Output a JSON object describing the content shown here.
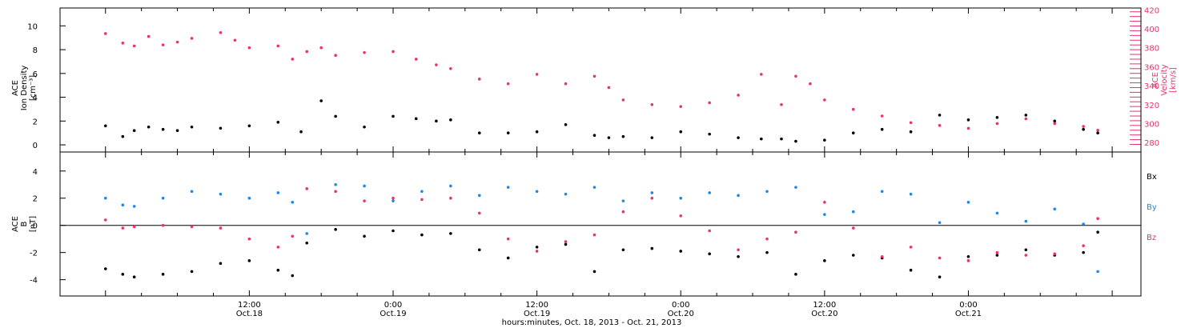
{
  "colors": {
    "black": "#000000",
    "pink": "#e8336e",
    "blue": "#1e88e5"
  },
  "chart_data": [
    {
      "type": "scatter",
      "panel": "top",
      "ylabel_left": [
        "ACE",
        "Ion Density",
        "[cm⁻³]"
      ],
      "ylabel_right": [
        "ACE",
        "Velocity",
        "[km/s]"
      ],
      "y_left_lim": [
        -0.6,
        11.5
      ],
      "y_left_ticks": [
        0,
        2,
        4,
        6,
        8,
        10
      ],
      "y_right_lim": [
        270,
        422
      ],
      "y_right_ticks": [
        280,
        300,
        320,
        340,
        360,
        380,
        400,
        420
      ],
      "series": [
        {
          "name": "Ion Density",
          "axis": "left",
          "color": "black",
          "x": [
            0.0,
            0.06,
            0.1,
            0.15,
            0.2,
            0.25,
            0.3,
            0.4,
            0.5,
            0.6,
            0.68,
            0.75,
            0.8,
            0.9,
            1.0,
            1.08,
            1.15,
            1.2,
            1.3,
            1.4,
            1.5,
            1.6,
            1.7,
            1.75,
            1.8,
            1.9,
            2.0,
            2.1,
            2.2,
            2.28,
            2.35,
            2.4,
            2.5,
            2.6,
            2.7,
            2.8,
            2.9,
            3.0,
            3.1,
            3.2,
            3.3,
            3.4,
            3.45
          ],
          "y": [
            1.6,
            0.7,
            1.2,
            1.5,
            1.3,
            1.2,
            1.5,
            1.4,
            1.6,
            1.9,
            1.1,
            3.7,
            2.4,
            1.5,
            2.4,
            2.2,
            2.0,
            2.1,
            1.0,
            1.0,
            1.1,
            1.7,
            0.8,
            0.6,
            0.7,
            0.6,
            1.1,
            0.9,
            0.6,
            0.5,
            0.5,
            0.3,
            0.4,
            1.0,
            1.3,
            1.1,
            2.5,
            2.1,
            2.3,
            2.5,
            2.0,
            1.3,
            1.0
          ]
        },
        {
          "name": "Velocity",
          "axis": "right",
          "color": "pink",
          "x": [
            0.0,
            0.06,
            0.1,
            0.15,
            0.2,
            0.25,
            0.3,
            0.4,
            0.45,
            0.5,
            0.6,
            0.65,
            0.7,
            0.75,
            0.8,
            0.9,
            1.0,
            1.08,
            1.15,
            1.2,
            1.3,
            1.4,
            1.5,
            1.6,
            1.7,
            1.75,
            1.8,
            1.9,
            2.0,
            2.1,
            2.2,
            2.28,
            2.35,
            2.4,
            2.45,
            2.5,
            2.6,
            2.7,
            2.8,
            2.9,
            3.0,
            3.1,
            3.2,
            3.3,
            3.4,
            3.45
          ],
          "y": [
            395,
            385,
            382,
            392,
            383,
            386,
            390,
            396,
            388,
            380,
            382,
            368,
            376,
            380,
            372,
            375,
            376,
            368,
            362,
            358,
            347,
            342,
            352,
            342,
            350,
            338,
            325,
            320,
            318,
            322,
            330,
            352,
            320,
            350,
            342,
            325,
            315,
            308,
            301,
            298,
            295,
            300,
            305,
            300,
            297,
            293
          ]
        }
      ]
    },
    {
      "type": "scatter",
      "panel": "bottom",
      "ylabel_left": [
        "ACE",
        "B",
        "[nT]"
      ],
      "y_lim": [
        -5.2,
        5.4
      ],
      "y_ticks": [
        -4,
        -2,
        0,
        2,
        4
      ],
      "zero_line": true,
      "legend": [
        "Bx",
        "By",
        "Bz"
      ],
      "series": [
        {
          "name": "Bx",
          "color": "black",
          "x": [
            0.0,
            0.06,
            0.1,
            0.2,
            0.3,
            0.4,
            0.5,
            0.6,
            0.65,
            0.7,
            0.8,
            0.9,
            1.0,
            1.1,
            1.2,
            1.3,
            1.4,
            1.5,
            1.6,
            1.7,
            1.8,
            1.9,
            2.0,
            2.1,
            2.2,
            2.3,
            2.4,
            2.5,
            2.6,
            2.7,
            2.8,
            2.9,
            3.0,
            3.1,
            3.2,
            3.3,
            3.4,
            3.45
          ],
          "y": [
            -3.2,
            -3.6,
            -3.8,
            -3.6,
            -3.4,
            -2.8,
            -2.6,
            -3.3,
            -3.7,
            -1.3,
            -0.3,
            -0.8,
            -0.4,
            -0.7,
            -0.6,
            -1.8,
            -2.4,
            -1.6,
            -1.4,
            -3.4,
            -1.8,
            -1.7,
            -1.9,
            -2.1,
            -2.3,
            -2.0,
            -3.6,
            -2.6,
            -2.2,
            -2.4,
            -3.3,
            -3.8,
            -2.3,
            -2.2,
            -1.8,
            -2.2,
            -2.0,
            -0.5
          ]
        },
        {
          "name": "By",
          "color": "blue",
          "x": [
            0.0,
            0.06,
            0.1,
            0.2,
            0.3,
            0.4,
            0.5,
            0.6,
            0.65,
            0.7,
            0.8,
            0.9,
            1.0,
            1.1,
            1.2,
            1.3,
            1.4,
            1.5,
            1.6,
            1.7,
            1.8,
            1.9,
            2.0,
            2.1,
            2.2,
            2.3,
            2.4,
            2.5,
            2.6,
            2.7,
            2.8,
            2.9,
            3.0,
            3.1,
            3.2,
            3.3,
            3.4,
            3.45
          ],
          "y": [
            2.0,
            1.5,
            1.4,
            2.0,
            2.5,
            2.3,
            2.0,
            2.4,
            1.7,
            -0.6,
            3.0,
            2.9,
            1.8,
            2.5,
            2.9,
            2.2,
            2.8,
            2.5,
            2.3,
            2.8,
            1.8,
            2.4,
            2.0,
            2.4,
            2.2,
            2.5,
            2.8,
            0.8,
            1.0,
            2.5,
            2.3,
            0.2,
            1.7,
            0.9,
            0.3,
            1.2,
            0.1,
            -3.4
          ]
        },
        {
          "name": "Bz",
          "color": "pink",
          "x": [
            0.0,
            0.06,
            0.1,
            0.2,
            0.3,
            0.4,
            0.5,
            0.6,
            0.65,
            0.7,
            0.8,
            0.9,
            1.0,
            1.1,
            1.2,
            1.3,
            1.4,
            1.5,
            1.6,
            1.7,
            1.8,
            1.9,
            2.0,
            2.1,
            2.2,
            2.3,
            2.4,
            2.5,
            2.6,
            2.7,
            2.8,
            2.9,
            3.0,
            3.1,
            3.2,
            3.3,
            3.4,
            3.45
          ],
          "y": [
            0.4,
            -0.2,
            -0.1,
            0.0,
            -0.1,
            -0.2,
            -1.0,
            -1.6,
            -0.8,
            2.7,
            2.5,
            1.8,
            2.0,
            1.9,
            2.0,
            0.9,
            -1.0,
            -1.9,
            -1.2,
            -0.7,
            1.0,
            2.0,
            0.7,
            -0.4,
            -1.8,
            -1.0,
            -0.5,
            1.7,
            -0.2,
            -2.3,
            -1.6,
            -2.4,
            -2.6,
            -2.0,
            -2.2,
            -2.1,
            -1.5,
            0.5
          ]
        }
      ]
    }
  ],
  "x_axis": {
    "lim": [
      -0.158,
      3.6
    ],
    "ticks": [
      {
        "x": 0.5,
        "time": "12:00",
        "date": "Oct.18"
      },
      {
        "x": 1.0,
        "time": "0:00",
        "date": "Oct.19"
      },
      {
        "x": 1.5,
        "time": "12:00",
        "date": "Oct.19"
      },
      {
        "x": 2.0,
        "time": "0:00",
        "date": "Oct.20"
      },
      {
        "x": 2.5,
        "time": "12:00",
        "date": "Oct.20"
      },
      {
        "x": 3.0,
        "time": "0:00",
        "date": "Oct.21"
      }
    ],
    "xlabel": "hours:minutes, Oct. 18, 2013 - Oct. 21, 2013"
  }
}
